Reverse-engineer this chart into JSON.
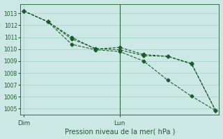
{
  "background_color": "#cce8e4",
  "grid_color": "#aad4cf",
  "line_color": "#1a5c2a",
  "xlabel": "Pression niveau de la mer( hPa )",
  "x_tick_labels": [
    "Dim",
    "Lun"
  ],
  "x_tick_positions": [
    0,
    8
  ],
  "ylim": [
    1004.5,
    1013.8
  ],
  "yticks": [
    1005,
    1006,
    1007,
    1008,
    1009,
    1010,
    1011,
    1012,
    1013
  ],
  "line1_x": [
    0,
    2,
    4,
    6,
    8,
    10,
    12,
    14,
    16
  ],
  "line1_y": [
    1013.2,
    1012.3,
    1011.0,
    1010.0,
    1010.15,
    1009.55,
    1009.4,
    1008.8,
    1004.85
  ],
  "line2_x": [
    0,
    2,
    4,
    6,
    8,
    10,
    12,
    14,
    16
  ],
  "line2_y": [
    1013.2,
    1012.3,
    1010.85,
    1010.05,
    1009.95,
    1009.45,
    1009.4,
    1008.75,
    1004.85
  ],
  "line3_x": [
    0,
    2,
    4,
    6,
    8,
    10,
    12,
    14,
    16
  ],
  "line3_y": [
    1013.2,
    1012.3,
    1010.4,
    1009.95,
    1009.8,
    1009.0,
    1007.4,
    1006.05,
    1004.85
  ],
  "vline_x": 8,
  "vline_color": "#2a6a3a"
}
